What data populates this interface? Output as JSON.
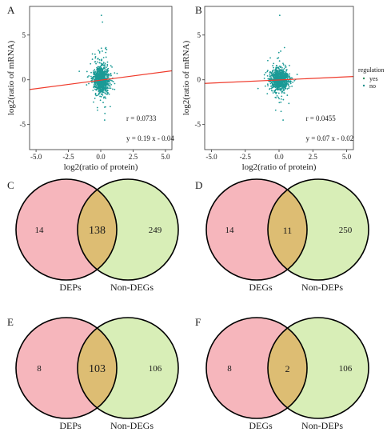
{
  "scatter_axis_labels": {
    "x": "log2(ratio of protein)",
    "y": "log2(ratio of mRNA)"
  },
  "legend": {
    "title": "regulation",
    "items": [
      {
        "label": "yes",
        "color": "#2e8b57"
      },
      {
        "label": "no",
        "color": "#1b8f8c"
      }
    ]
  },
  "colors": {
    "points": "#1b9a96",
    "regression": "#ef3b2c",
    "panel_border": "#333333",
    "circle_left": "#f6b6bc",
    "circle_right": "#d8eeb7",
    "overlap": "#ddbd73"
  },
  "panels": [
    {
      "letter": "A"
    },
    {
      "letter": "B"
    },
    {
      "letter": "C"
    },
    {
      "letter": "D"
    },
    {
      "letter": "E"
    },
    {
      "letter": "F"
    }
  ],
  "chart_data": [
    {
      "type": "scatter",
      "panel": "A",
      "title": "",
      "xlabel": "log2(ratio of protein)",
      "ylabel": "log2(ratio of mRNA)",
      "xlim": [
        -5.5,
        5.5
      ],
      "ylim": [
        -7.8,
        8.2
      ],
      "xticks": [
        "-5.0",
        "-2.5",
        "0.0",
        "2.5",
        "5.0"
      ],
      "xtick_values": [
        -5,
        -2.5,
        0,
        2.5,
        5
      ],
      "yticks": [
        "5",
        "0",
        "-5"
      ],
      "ytick_values": [
        5,
        0,
        -5
      ],
      "grid": false,
      "cluster": {
        "x_center": 0.05,
        "x_spread": 0.28,
        "y_center": 0.05,
        "y_spread": 0.7
      },
      "regression": {
        "slope": 0.19,
        "intercept": -0.04
      },
      "annotations": [
        "r =  0.0733",
        "y =  0.19 x - 0.04"
      ],
      "legend": "none"
    },
    {
      "type": "scatter",
      "panel": "B",
      "title": "",
      "xlabel": "log2(ratio of protein)",
      "ylabel": "log2(ratio of mRNA)",
      "xlim": [
        -5.5,
        5.5
      ],
      "ylim": [
        -7.8,
        8.2
      ],
      "xticks": [
        "-5.0",
        "-2.5",
        "0.0",
        "2.5",
        "5.0"
      ],
      "xtick_values": [
        -5,
        -2.5,
        0,
        2.5,
        5
      ],
      "yticks": [
        "5",
        "0",
        "-5"
      ],
      "ytick_values": [
        5,
        0,
        -5
      ],
      "grid": false,
      "cluster": {
        "x_center": 0.05,
        "x_spread": 0.3,
        "y_center": 0.0,
        "y_spread": 0.55
      },
      "regression": {
        "slope": 0.07,
        "intercept": -0.02
      },
      "annotations": [
        "r =  0.0455",
        "y =  0.07 x - 0.02"
      ],
      "legend": "right"
    },
    {
      "type": "venn",
      "panel": "C",
      "left_label": "DEPs",
      "right_label": "Non-DEGs",
      "left_only": "14",
      "overlap": "138",
      "right_only": "249"
    },
    {
      "type": "venn",
      "panel": "D",
      "left_label": "DEGs",
      "right_label": "Non-DEPs",
      "left_only": "14",
      "overlap": "11",
      "right_only": "250"
    },
    {
      "type": "venn",
      "panel": "E",
      "left_label": "DEPs",
      "right_label": "Non-DEGs",
      "left_only": "8",
      "overlap": "103",
      "right_only": "106"
    },
    {
      "type": "venn",
      "panel": "F",
      "left_label": "DEGs",
      "right_label": "Non-DEPs",
      "left_only": "8",
      "overlap": "2",
      "right_only": "106"
    }
  ]
}
